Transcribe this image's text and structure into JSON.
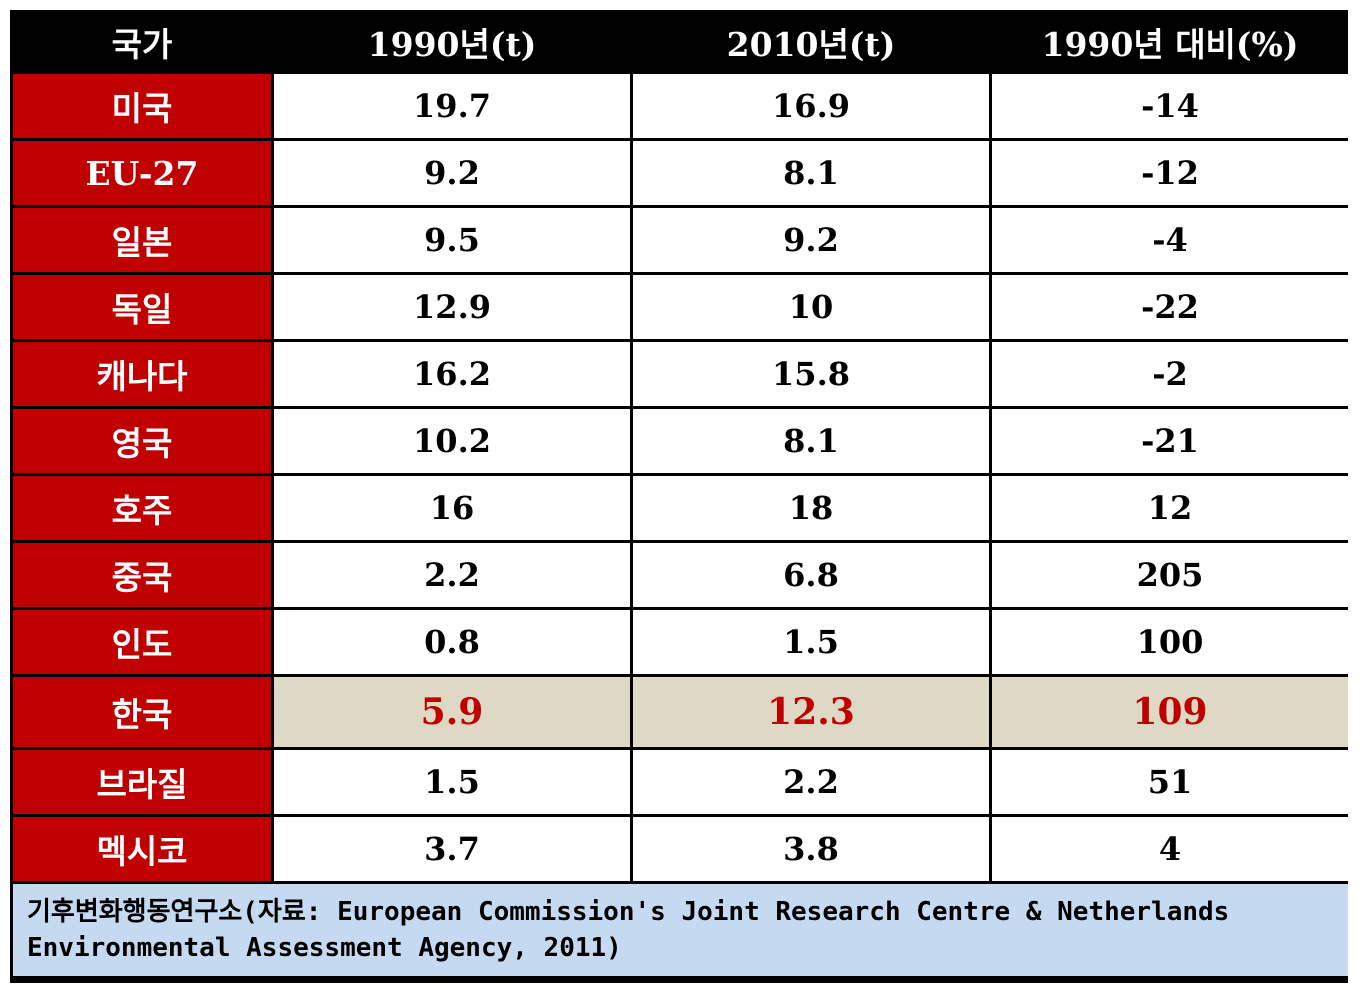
{
  "table": {
    "headers": [
      "국가",
      "1990년(t)",
      "2010년(t)",
      "1990년 대비(%)"
    ],
    "rows": [
      {
        "country": "미국",
        "y1990": "19.7",
        "y2010": "16.9",
        "change": "-14"
      },
      {
        "country": "EU-27",
        "y1990": "9.2",
        "y2010": "8.1",
        "change": "-12"
      },
      {
        "country": "일본",
        "y1990": "9.5",
        "y2010": "9.2",
        "change": "-4"
      },
      {
        "country": "독일",
        "y1990": "12.9",
        "y2010": "10",
        "change": "-22"
      },
      {
        "country": "캐나다",
        "y1990": "16.2",
        "y2010": "15.8",
        "change": "-2"
      },
      {
        "country": "영국",
        "y1990": "10.2",
        "y2010": "8.1",
        "change": "-21"
      },
      {
        "country": "호주",
        "y1990": "16",
        "y2010": "18",
        "change": "12"
      },
      {
        "country": "중국",
        "y1990": "2.2",
        "y2010": "6.8",
        "change": "205"
      },
      {
        "country": "인도",
        "y1990": "0.8",
        "y2010": "1.5",
        "change": "100"
      },
      {
        "country": "한국",
        "y1990": "5.9",
        "y2010": "12.3",
        "change": "109"
      },
      {
        "country": "브라질",
        "y1990": "1.5",
        "y2010": "2.2",
        "change": "51"
      },
      {
        "country": "멕시코",
        "y1990": "3.7",
        "y2010": "3.8",
        "change": "4"
      }
    ],
    "source_note": "기후변화행동연구소(자료: European Commission's Joint Research Centre & Netherlands Environmental Assessment Agency, 2011)"
  },
  "colors": {
    "header_bg": "#000000",
    "country_bg": "#c00000",
    "highlight_bg": "#ddd9c4",
    "highlight_text": "#c00000",
    "note_bg": "#c5d9f1"
  }
}
